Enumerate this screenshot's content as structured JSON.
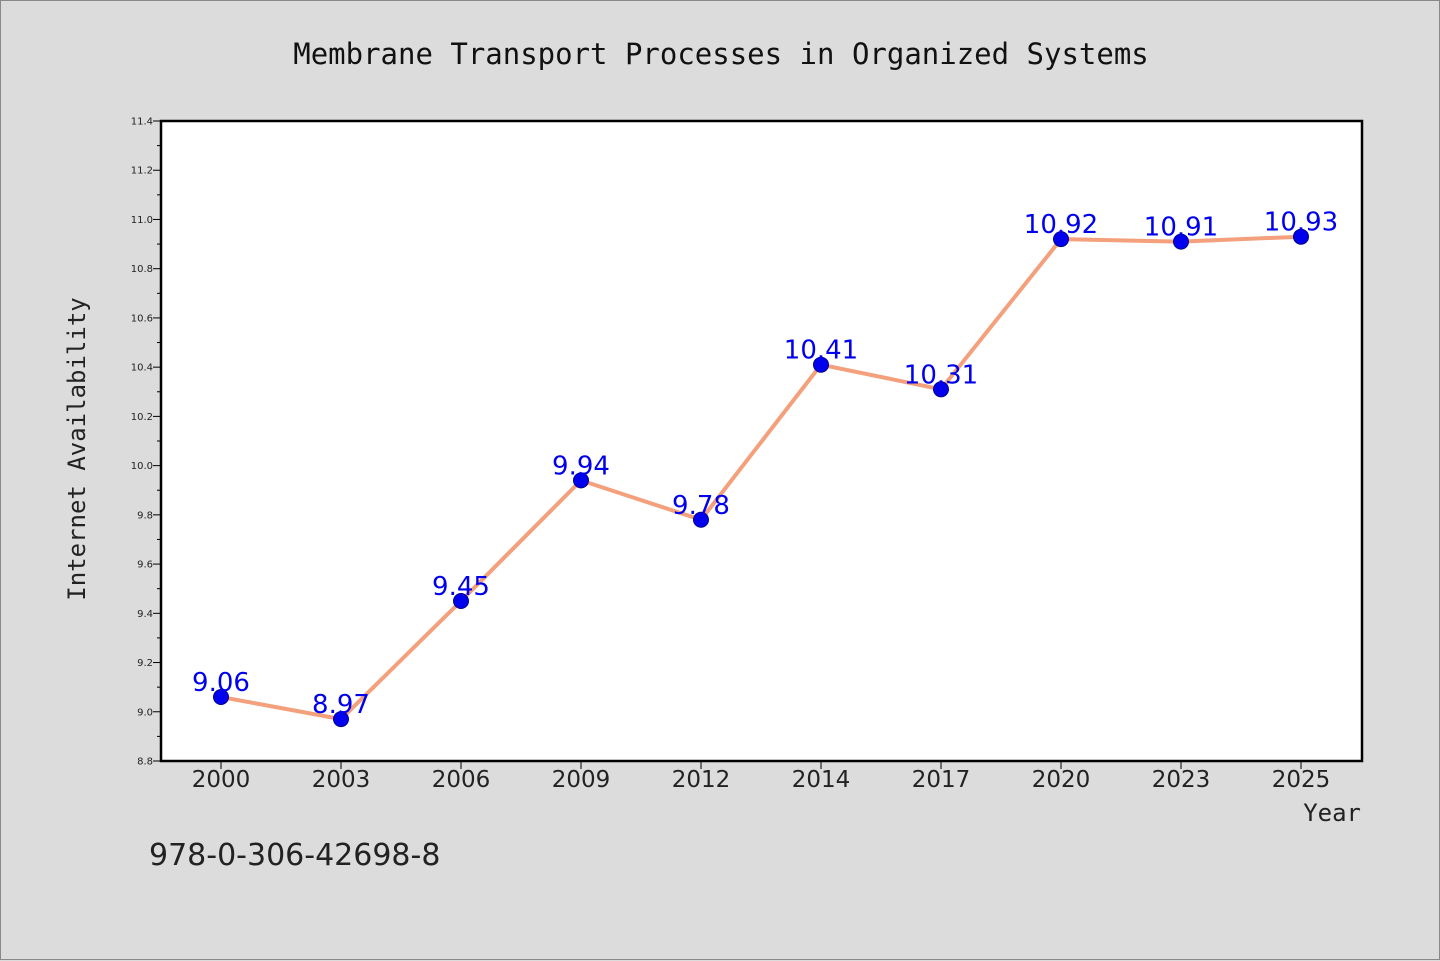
{
  "chart_data": {
    "type": "line",
    "title": "Membrane Transport Processes in Organized Systems",
    "xlabel": "Year",
    "ylabel": "Internet Availability",
    "categories": [
      "2000",
      "2003",
      "2006",
      "2009",
      "2012",
      "2014",
      "2017",
      "2020",
      "2023",
      "2025"
    ],
    "series": [
      {
        "values": [
          9.06,
          8.97,
          9.45,
          9.94,
          9.78,
          10.41,
          10.31,
          10.92,
          10.91,
          10.93
        ],
        "data_labels": [
          "9.06",
          "8.97",
          "9.45",
          "9.94",
          "9.78",
          "10.41",
          "10.31",
          "10.92",
          "10.91",
          "10.93"
        ],
        "line_color": "#f4a07c",
        "marker_color": "#0000ee",
        "label_color": "#0000ee"
      }
    ],
    "ylim": [
      8.8,
      11.4
    ],
    "yticks": [
      8.8,
      9.0,
      9.2,
      9.4,
      9.6,
      9.8,
      10.0,
      10.2,
      10.4,
      10.6,
      10.8,
      11.0,
      11.2,
      11.4
    ],
    "ytick_labels": [
      "8.8",
      "9.0",
      "9.2",
      "9.4",
      "9.6",
      "9.8",
      "10.0",
      "10.2",
      "10.4",
      "10.6",
      "10.8",
      "11.0",
      "11.2",
      "11.4"
    ],
    "grid": false,
    "legend": "none"
  },
  "footer": {
    "isbn": "978-0-306-42698-8"
  }
}
